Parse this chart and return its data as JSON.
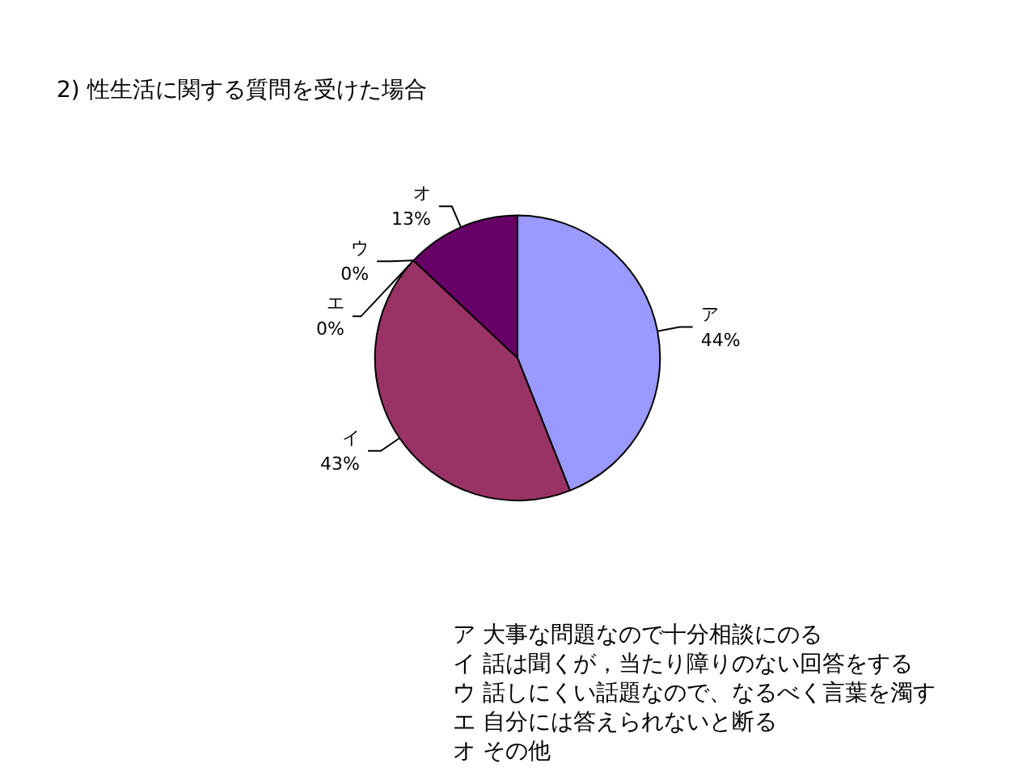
{
  "chart_data": {
    "type": "pie",
    "title": "2) 性生活に関する質問を受けた場合",
    "categories": [
      "ア",
      "イ",
      "ウ",
      "エ",
      "オ"
    ],
    "values": [
      44,
      43,
      0,
      0,
      13
    ],
    "value_labels": [
      "44%",
      "43%",
      "0%",
      "0%",
      "13%"
    ],
    "colors": [
      "#9999ff",
      "#993366",
      "#ffffcc",
      "#ccffff",
      "#660066"
    ],
    "legend": false,
    "annotations": [
      "ア 大事な問題なので十分相談にのる",
      "イ 話は聞くが，当たり障りのない回答をする",
      "ウ 話しにくい話題なので、なるべく言葉を濁す",
      "エ 自分には答えられないと断る",
      "オ その他"
    ]
  }
}
